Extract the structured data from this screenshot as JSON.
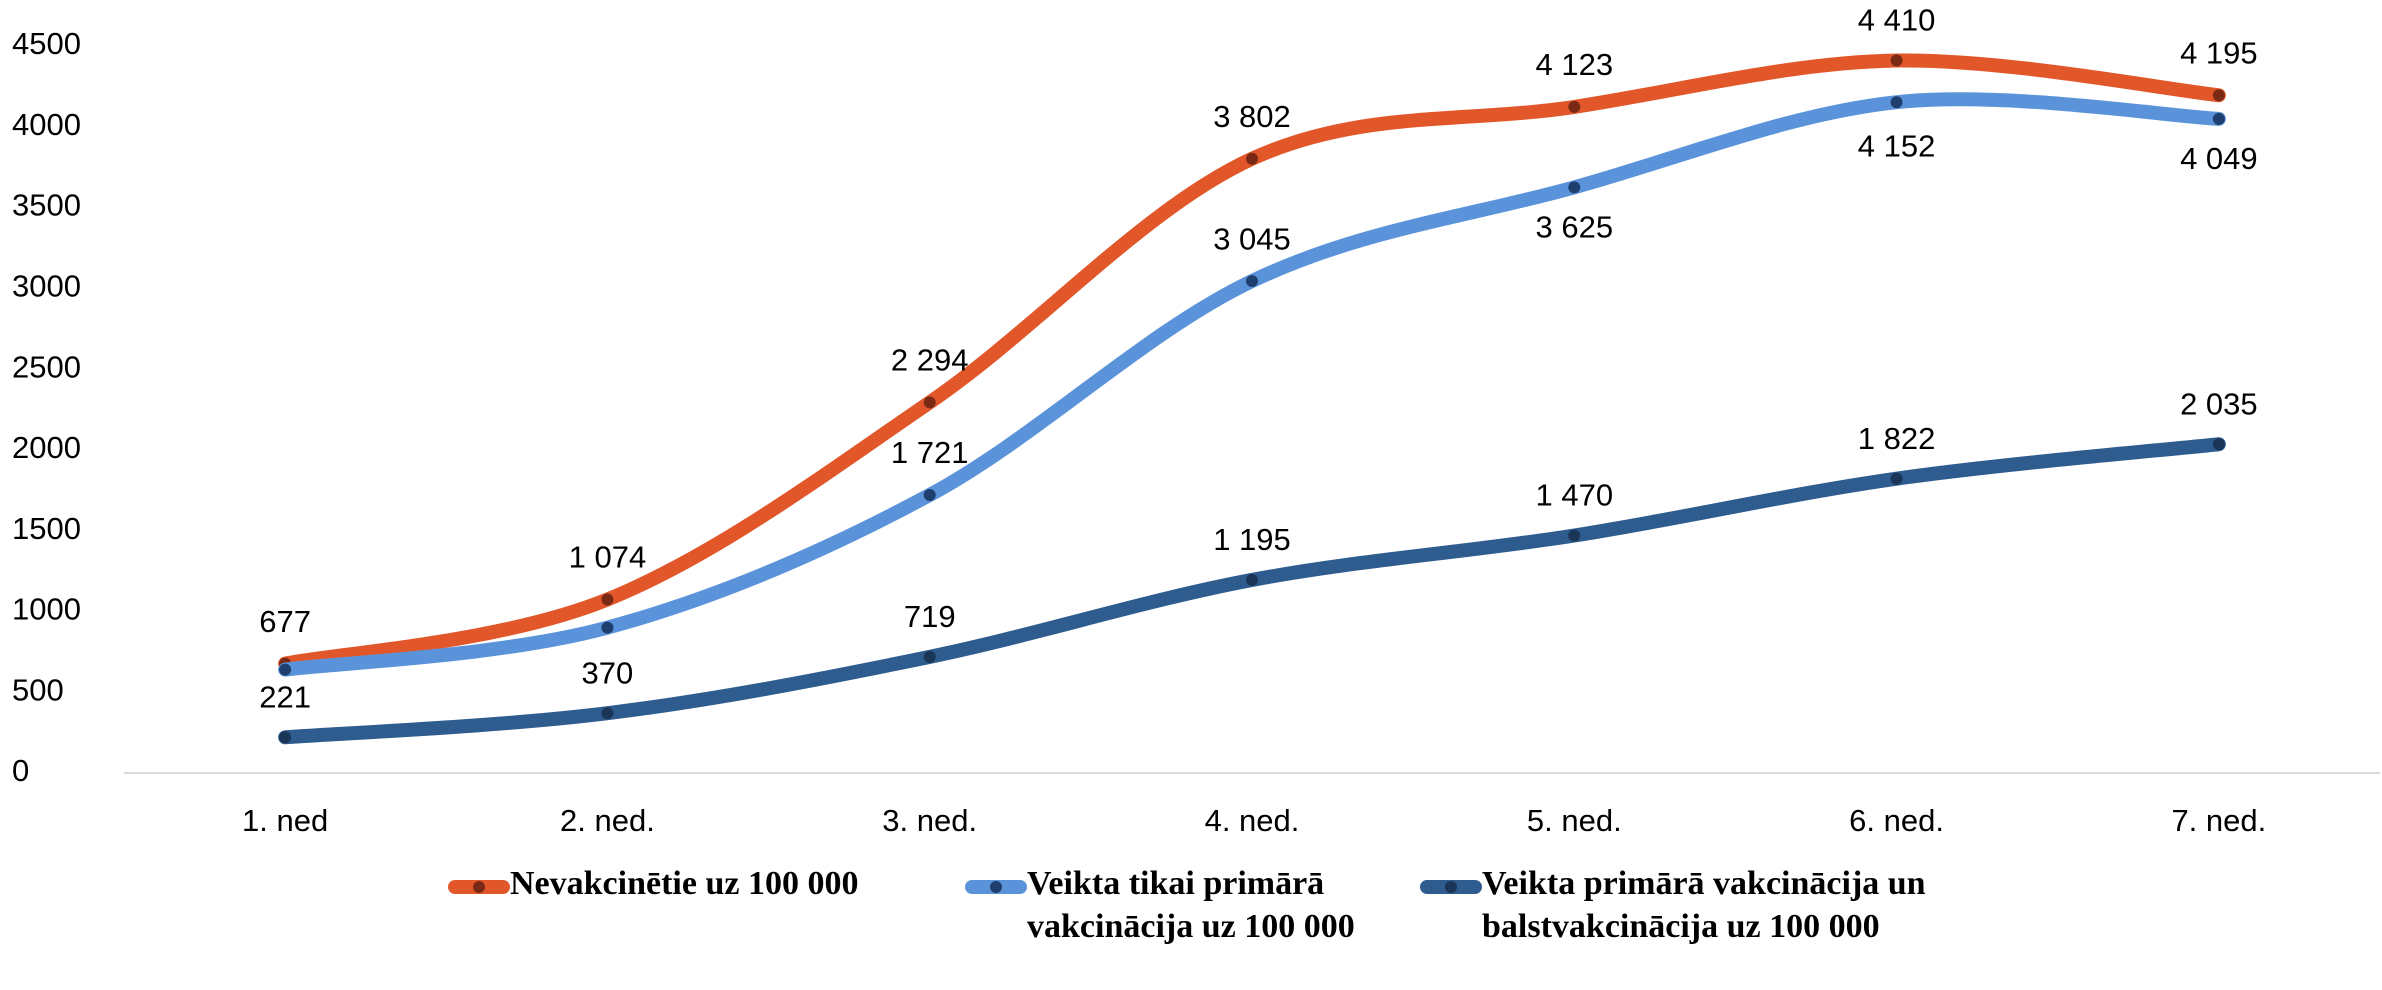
{
  "chart_data": {
    "type": "line",
    "categories": [
      "1. ned",
      "2. ned.",
      "3. ned.",
      "4. ned.",
      "5. ned.",
      "6. ned.",
      "7. ned."
    ],
    "series": [
      {
        "name": "Nevakcinētie uz 100 000",
        "color": "#e2572a",
        "marker_color": "#7a2a14",
        "values": [
          677,
          1074,
          2294,
          3802,
          4123,
          4410,
          4195
        ],
        "value_labels": [
          "677",
          "1 074",
          "2 294",
          "3 802",
          "4 123",
          "4 410",
          "4 195"
        ]
      },
      {
        "name": "Veikta tikai primārā vakcinācija uz 100 000",
        "color": "#5b93da",
        "marker_color": "#1f3f6e",
        "values": [
          640,
          900,
          1721,
          3045,
          3625,
          4152,
          4049
        ],
        "value_labels": [
          null,
          null,
          "1 721",
          "3 045",
          "3 625",
          "4 152",
          "4 049"
        ]
      },
      {
        "name": "Veikta primārā vakcinācija un balstvakcinācija uz 100 000",
        "color": "#2e5c8e",
        "marker_color": "#1b3556",
        "values": [
          221,
          370,
          719,
          1195,
          1470,
          1822,
          2035
        ],
        "value_labels": [
          "221",
          "370",
          "719",
          "1 195",
          "1 470",
          "1 822",
          "2 035"
        ]
      }
    ],
    "ylim": [
      0,
      4500
    ],
    "yticks": [
      0,
      500,
      1000,
      1500,
      2000,
      2500,
      3000,
      3500,
      4000,
      4500
    ],
    "grid": false
  }
}
